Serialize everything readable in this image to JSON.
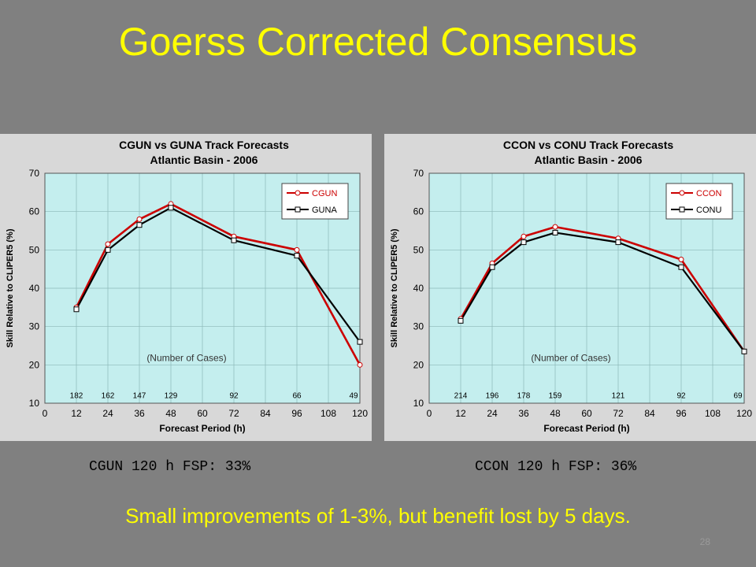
{
  "slide": {
    "title": "Goerss Corrected Consensus",
    "caption_left": "CGUN 120 h FSP: 33%",
    "caption_right": "CCON 120 h FSP: 36%",
    "note": "Small improvements of 1-3%, but benefit lost by 5 days.",
    "page_number": "28"
  },
  "colors": {
    "background": "#808080",
    "title": "#ffff00",
    "plot_area": "#c4eeee",
    "frame": "#d8d8d8",
    "corrected_series": "#cc0000",
    "uncorrected_series": "#000000"
  },
  "chart_data": [
    {
      "type": "line",
      "title": "CGUN vs GUNA Track Forecasts",
      "subtitle": "Atlantic Basin - 2006",
      "xlabel": "Forecast Period (h)",
      "ylabel": "Skill Relative to CLIPER5 (%)",
      "xlim": [
        0,
        120
      ],
      "ylim": [
        10,
        70
      ],
      "xticks": [
        0,
        12,
        24,
        36,
        48,
        60,
        72,
        84,
        96,
        108,
        120
      ],
      "yticks": [
        10,
        20,
        30,
        40,
        50,
        60,
        70
      ],
      "grid": true,
      "legend": "top-right",
      "x": [
        12,
        24,
        36,
        48,
        72,
        96,
        120
      ],
      "series": [
        {
          "name": "CGUN",
          "values": [
            35,
            51.5,
            58,
            62,
            53.5,
            50,
            20
          ]
        },
        {
          "name": "GUNA",
          "values": [
            34.5,
            50,
            56.5,
            61,
            52.5,
            48.5,
            26
          ]
        }
      ],
      "annotation": "(Number of Cases)",
      "case_counts": [
        "182",
        "162",
        "147",
        "129",
        "92",
        "66",
        "49"
      ]
    },
    {
      "type": "line",
      "title": "CCON vs CONU Track Forecasts",
      "subtitle": "Atlantic Basin - 2006",
      "xlabel": "Forecast Period (h)",
      "ylabel": "Skill Relative to CLIPER5 (%)",
      "xlim": [
        0,
        120
      ],
      "ylim": [
        10,
        70
      ],
      "xticks": [
        0,
        12,
        24,
        36,
        48,
        60,
        72,
        84,
        96,
        108,
        120
      ],
      "yticks": [
        10,
        20,
        30,
        40,
        50,
        60,
        70
      ],
      "grid": true,
      "legend": "top-right",
      "x": [
        12,
        24,
        36,
        48,
        72,
        96,
        120
      ],
      "series": [
        {
          "name": "CCON",
          "values": [
            32,
            46.5,
            53.5,
            56,
            53,
            47.5,
            23.5
          ]
        },
        {
          "name": "CONU",
          "values": [
            31.5,
            45.5,
            52,
            54.5,
            52,
            45.5,
            23.5
          ]
        }
      ],
      "annotation": "(Number of Cases)",
      "case_counts": [
        "214",
        "196",
        "178",
        "159",
        "121",
        "92",
        "69"
      ]
    }
  ]
}
